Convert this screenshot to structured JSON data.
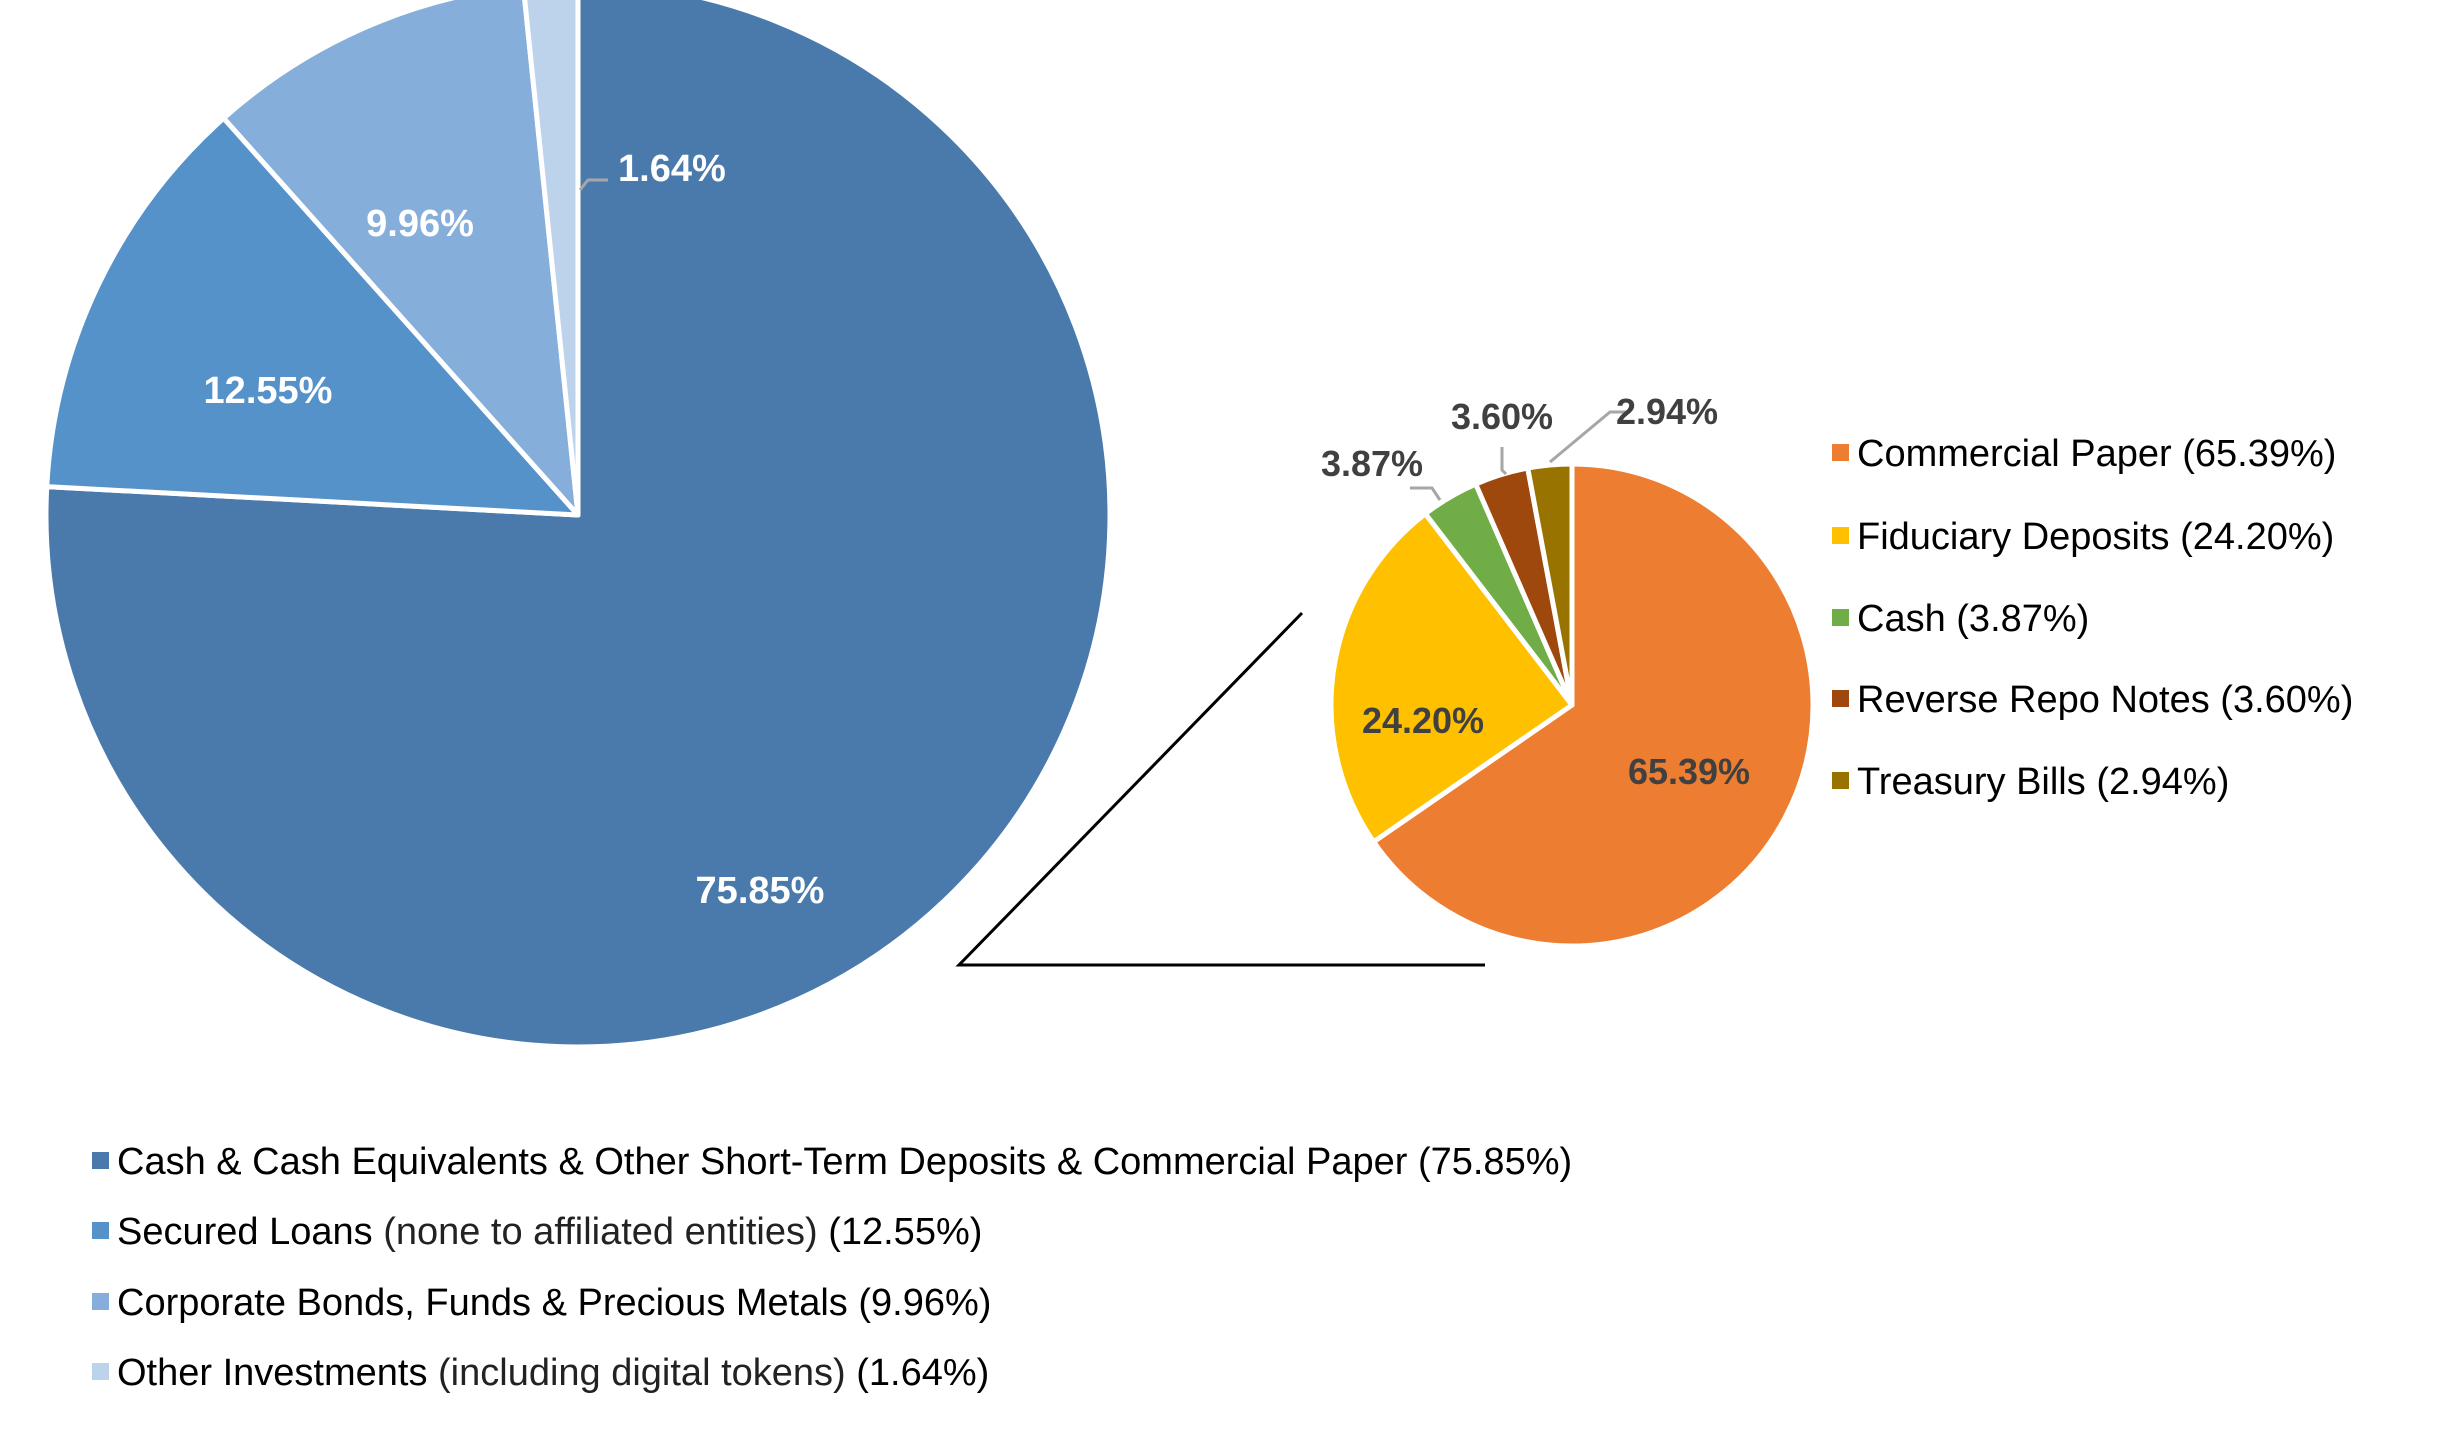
{
  "chart_data": [
    {
      "type": "pie",
      "title": "",
      "slices": [
        {
          "label": "Cash & Cash Equivalents & Other Short-Term Deposits & Commercial Paper",
          "subtext": "",
          "value": 75.85,
          "data_label": "75.85%",
          "legend": "(75.85%)",
          "color": "#4A7AAB"
        },
        {
          "label": "Secured Loans",
          "subtext": "(none to affiliated entities)",
          "value": 12.55,
          "data_label": "12.55%",
          "legend": "(12.55%)",
          "color": "#5592C9"
        },
        {
          "label": "Corporate Bonds, Funds & Precious Metals",
          "subtext": "",
          "value": 9.96,
          "data_label": "9.96%",
          "legend": "(9.96%)",
          "color": "#86AEDB"
        },
        {
          "label": "Other Investments",
          "subtext": "(including digital tokens)",
          "value": 1.64,
          "data_label": "1.64%",
          "legend": "(1.64%)",
          "color": "#BDD3EC"
        }
      ],
      "legend_position": "bottom"
    },
    {
      "type": "pie",
      "title": "",
      "slices": [
        {
          "label": "Commercial Paper",
          "value": 65.39,
          "data_label": "65.39%",
          "legend": "(65.39%)",
          "color": "#ED7D31"
        },
        {
          "label": "Fiduciary Deposits",
          "value": 24.2,
          "data_label": "24.20%",
          "legend": "(24.20%)",
          "color": "#FFC000"
        },
        {
          "label": "Cash",
          "value": 3.87,
          "data_label": "3.87%",
          "legend": "(3.87%)",
          "color": "#70AD47"
        },
        {
          "label": "Reverse Repo Notes",
          "value": 3.6,
          "data_label": "3.60%",
          "legend": "(3.60%)",
          "color": "#9E480E"
        },
        {
          "label": "Treasury Bills",
          "value": 2.94,
          "data_label": "2.94%",
          "legend": "(2.94%)",
          "color": "#997300"
        }
      ],
      "legend_position": "right"
    }
  ]
}
